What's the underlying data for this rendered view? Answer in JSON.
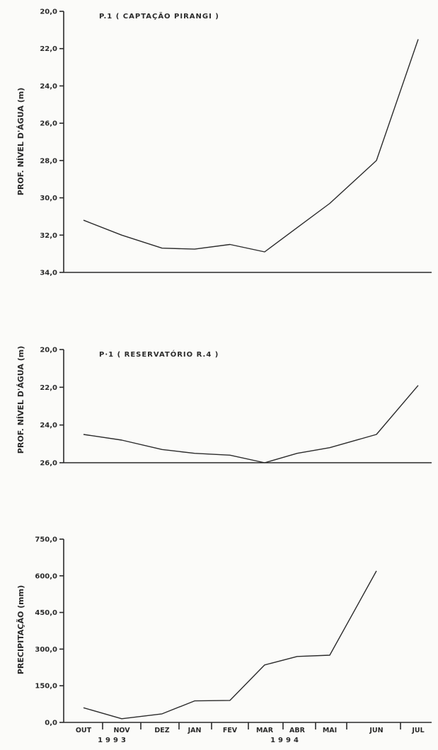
{
  "chart_data": [
    {
      "type": "line",
      "title": "P.1 ( CAPTAÇÃO  PIRANGI )",
      "ylabel": "PROF. NÍVEL D'ÁGUA (m)",
      "categories": [
        "OUT",
        "NOV",
        "DEZ",
        "JAN",
        "FEV",
        "MAR",
        "ABR",
        "MAI",
        "JUN",
        "JUL"
      ],
      "ylim": [
        34.0,
        20.0
      ],
      "yticks": [
        "20,0",
        "22,0",
        "24,0",
        "26,0",
        "28,0",
        "30,0",
        "32,0",
        "34,0"
      ],
      "series": [
        {
          "values": [
            31.2,
            32.0,
            32.7,
            32.75,
            32.5,
            32.9,
            31.6,
            30.3,
            28.0,
            21.5
          ]
        }
      ]
    },
    {
      "type": "line",
      "title": "P·1  ( RESERVATÓRIO  R.4 )",
      "ylabel": "PROF. NÍVEL D'ÁGUA (m)",
      "categories": [
        "OUT",
        "NOV",
        "DEZ",
        "JAN",
        "FEV",
        "MAR",
        "ABR",
        "MAI",
        "JUN",
        "JUL"
      ],
      "ylim": [
        26.0,
        20.0
      ],
      "yticks": [
        "20,0",
        "22,0",
        "24,0",
        "26,0"
      ],
      "series": [
        {
          "values": [
            24.5,
            24.8,
            25.3,
            25.5,
            25.6,
            26.0,
            25.5,
            25.2,
            24.5,
            21.9
          ]
        }
      ]
    },
    {
      "type": "line",
      "title": "",
      "ylabel": "PRECIPITAÇÃO (mm)",
      "categories": [
        "OUT",
        "NOV",
        "DEZ",
        "JAN",
        "FEV",
        "MAR",
        "ABR",
        "MAI",
        "JUN",
        "JUL"
      ],
      "ylim": [
        0,
        750
      ],
      "yticks": [
        "0,0",
        "150,0",
        "300,0",
        "450,0",
        "600,0",
        "750,0"
      ],
      "series": [
        {
          "values": [
            60,
            15,
            35,
            88,
            90,
            235,
            270,
            275,
            620,
            null
          ]
        }
      ],
      "years": [
        "1993",
        "1994"
      ]
    }
  ]
}
